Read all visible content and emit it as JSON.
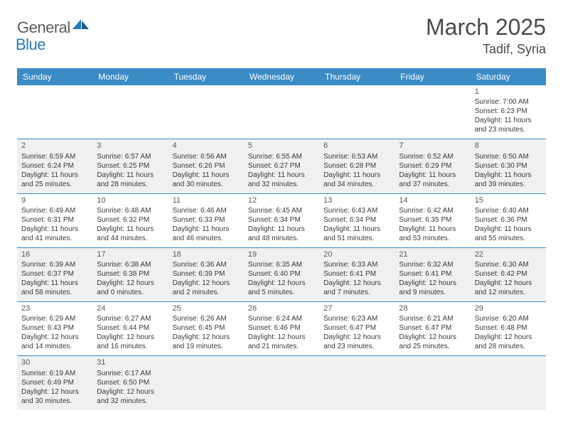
{
  "logo": {
    "general": "General",
    "blue": "Blue"
  },
  "title": "March 2025",
  "location": "Tadif, Syria",
  "dayHeaders": [
    "Sunday",
    "Monday",
    "Tuesday",
    "Wednesday",
    "Thursday",
    "Friday",
    "Saturday"
  ],
  "colors": {
    "headerBg": "#3b8bc4",
    "headerText": "#ffffff",
    "oddWeekBg": "#f0f0f0",
    "evenWeekBg": "#ffffff",
    "borderColor": "#3b8bc4",
    "textColor": "#3a3a3a",
    "titleColor": "#4a4a4a",
    "logoGray": "#5a5a5a",
    "logoBlue": "#2a7ab8"
  },
  "weeks": [
    {
      "bg": "even",
      "days": [
        null,
        null,
        null,
        null,
        null,
        null,
        {
          "num": "1",
          "sunrise": "Sunrise: 7:00 AM",
          "sunset": "Sunset: 6:23 PM",
          "daylight": "Daylight: 11 hours and 23 minutes."
        }
      ]
    },
    {
      "bg": "odd",
      "days": [
        {
          "num": "2",
          "sunrise": "Sunrise: 6:59 AM",
          "sunset": "Sunset: 6:24 PM",
          "daylight": "Daylight: 11 hours and 25 minutes."
        },
        {
          "num": "3",
          "sunrise": "Sunrise: 6:57 AM",
          "sunset": "Sunset: 6:25 PM",
          "daylight": "Daylight: 11 hours and 28 minutes."
        },
        {
          "num": "4",
          "sunrise": "Sunrise: 6:56 AM",
          "sunset": "Sunset: 6:26 PM",
          "daylight": "Daylight: 11 hours and 30 minutes."
        },
        {
          "num": "5",
          "sunrise": "Sunrise: 6:55 AM",
          "sunset": "Sunset: 6:27 PM",
          "daylight": "Daylight: 11 hours and 32 minutes."
        },
        {
          "num": "6",
          "sunrise": "Sunrise: 6:53 AM",
          "sunset": "Sunset: 6:28 PM",
          "daylight": "Daylight: 11 hours and 34 minutes."
        },
        {
          "num": "7",
          "sunrise": "Sunrise: 6:52 AM",
          "sunset": "Sunset: 6:29 PM",
          "daylight": "Daylight: 11 hours and 37 minutes."
        },
        {
          "num": "8",
          "sunrise": "Sunrise: 6:50 AM",
          "sunset": "Sunset: 6:30 PM",
          "daylight": "Daylight: 11 hours and 39 minutes."
        }
      ]
    },
    {
      "bg": "even",
      "days": [
        {
          "num": "9",
          "sunrise": "Sunrise: 6:49 AM",
          "sunset": "Sunset: 6:31 PM",
          "daylight": "Daylight: 11 hours and 41 minutes."
        },
        {
          "num": "10",
          "sunrise": "Sunrise: 6:48 AM",
          "sunset": "Sunset: 6:32 PM",
          "daylight": "Daylight: 11 hours and 44 minutes."
        },
        {
          "num": "11",
          "sunrise": "Sunrise: 6:46 AM",
          "sunset": "Sunset: 6:33 PM",
          "daylight": "Daylight: 11 hours and 46 minutes."
        },
        {
          "num": "12",
          "sunrise": "Sunrise: 6:45 AM",
          "sunset": "Sunset: 6:34 PM",
          "daylight": "Daylight: 11 hours and 48 minutes."
        },
        {
          "num": "13",
          "sunrise": "Sunrise: 6:43 AM",
          "sunset": "Sunset: 6:34 PM",
          "daylight": "Daylight: 11 hours and 51 minutes."
        },
        {
          "num": "14",
          "sunrise": "Sunrise: 6:42 AM",
          "sunset": "Sunset: 6:35 PM",
          "daylight": "Daylight: 11 hours and 53 minutes."
        },
        {
          "num": "15",
          "sunrise": "Sunrise: 6:40 AM",
          "sunset": "Sunset: 6:36 PM",
          "daylight": "Daylight: 11 hours and 55 minutes."
        }
      ]
    },
    {
      "bg": "odd",
      "days": [
        {
          "num": "16",
          "sunrise": "Sunrise: 6:39 AM",
          "sunset": "Sunset: 6:37 PM",
          "daylight": "Daylight: 11 hours and 58 minutes."
        },
        {
          "num": "17",
          "sunrise": "Sunrise: 6:38 AM",
          "sunset": "Sunset: 6:38 PM",
          "daylight": "Daylight: 12 hours and 0 minutes."
        },
        {
          "num": "18",
          "sunrise": "Sunrise: 6:36 AM",
          "sunset": "Sunset: 6:39 PM",
          "daylight": "Daylight: 12 hours and 2 minutes."
        },
        {
          "num": "19",
          "sunrise": "Sunrise: 6:35 AM",
          "sunset": "Sunset: 6:40 PM",
          "daylight": "Daylight: 12 hours and 5 minutes."
        },
        {
          "num": "20",
          "sunrise": "Sunrise: 6:33 AM",
          "sunset": "Sunset: 6:41 PM",
          "daylight": "Daylight: 12 hours and 7 minutes."
        },
        {
          "num": "21",
          "sunrise": "Sunrise: 6:32 AM",
          "sunset": "Sunset: 6:41 PM",
          "daylight": "Daylight: 12 hours and 9 minutes."
        },
        {
          "num": "22",
          "sunrise": "Sunrise: 6:30 AM",
          "sunset": "Sunset: 6:42 PM",
          "daylight": "Daylight: 12 hours and 12 minutes."
        }
      ]
    },
    {
      "bg": "even",
      "days": [
        {
          "num": "23",
          "sunrise": "Sunrise: 6:29 AM",
          "sunset": "Sunset: 6:43 PM",
          "daylight": "Daylight: 12 hours and 14 minutes."
        },
        {
          "num": "24",
          "sunrise": "Sunrise: 6:27 AM",
          "sunset": "Sunset: 6:44 PM",
          "daylight": "Daylight: 12 hours and 16 minutes."
        },
        {
          "num": "25",
          "sunrise": "Sunrise: 6:26 AM",
          "sunset": "Sunset: 6:45 PM",
          "daylight": "Daylight: 12 hours and 19 minutes."
        },
        {
          "num": "26",
          "sunrise": "Sunrise: 6:24 AM",
          "sunset": "Sunset: 6:46 PM",
          "daylight": "Daylight: 12 hours and 21 minutes."
        },
        {
          "num": "27",
          "sunrise": "Sunrise: 6:23 AM",
          "sunset": "Sunset: 6:47 PM",
          "daylight": "Daylight: 12 hours and 23 minutes."
        },
        {
          "num": "28",
          "sunrise": "Sunrise: 6:21 AM",
          "sunset": "Sunset: 6:47 PM",
          "daylight": "Daylight: 12 hours and 25 minutes."
        },
        {
          "num": "29",
          "sunrise": "Sunrise: 6:20 AM",
          "sunset": "Sunset: 6:48 PM",
          "daylight": "Daylight: 12 hours and 28 minutes."
        }
      ]
    },
    {
      "bg": "odd",
      "days": [
        {
          "num": "30",
          "sunrise": "Sunrise: 6:19 AM",
          "sunset": "Sunset: 6:49 PM",
          "daylight": "Daylight: 12 hours and 30 minutes."
        },
        {
          "num": "31",
          "sunrise": "Sunrise: 6:17 AM",
          "sunset": "Sunset: 6:50 PM",
          "daylight": "Daylight: 12 hours and 32 minutes."
        },
        null,
        null,
        null,
        null,
        null
      ]
    }
  ]
}
